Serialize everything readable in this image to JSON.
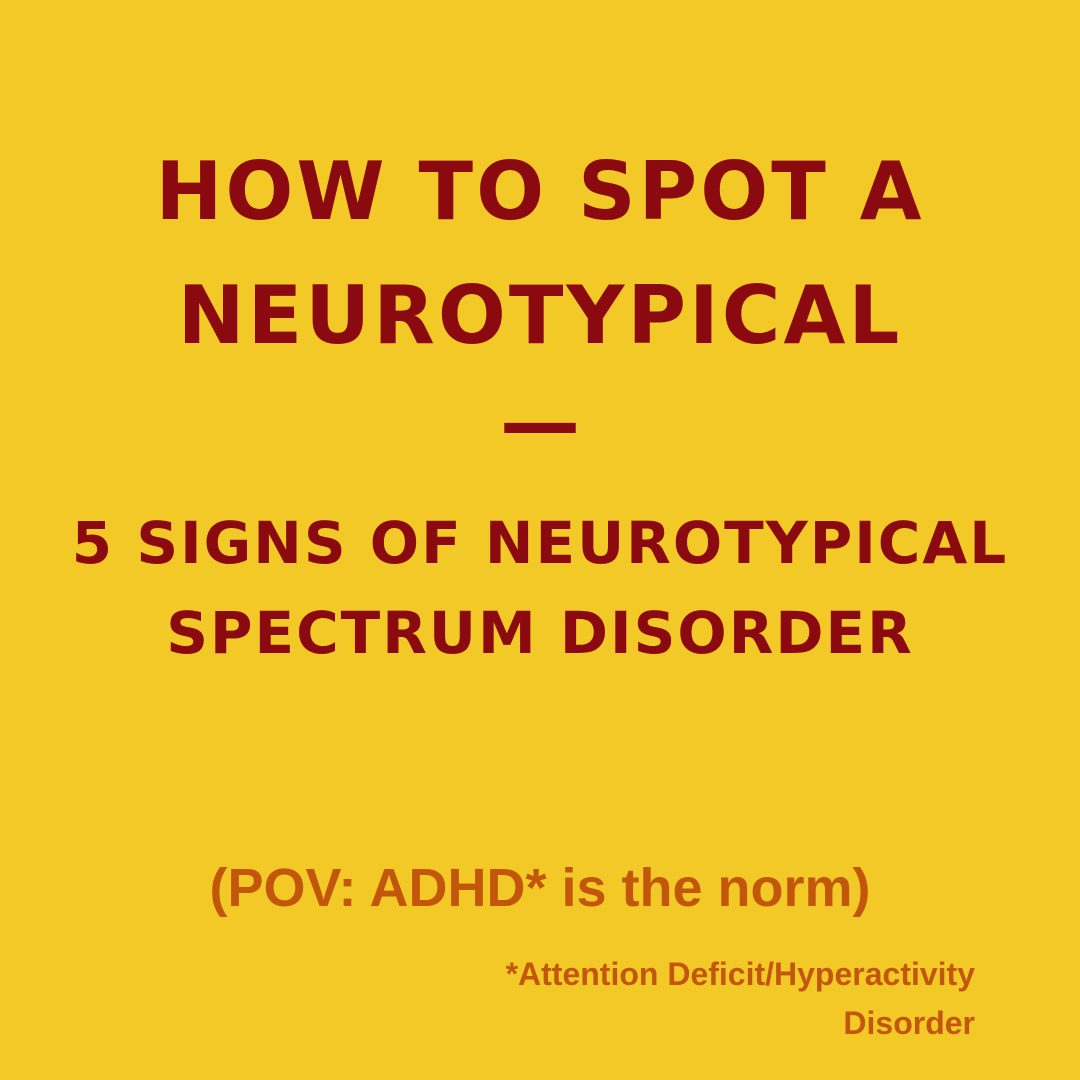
{
  "colors": {
    "background": "#F3C928",
    "heading": "#8A0A0F",
    "accent": "#C2570C"
  },
  "title": {
    "line1": "HOW TO SPOT A",
    "line2": "NEUROTYPICAL"
  },
  "separator": "—",
  "subtitle": {
    "line1": "5 SIGNS OF NEUROTYPICAL",
    "line2": "SPECTRUM DISORDER"
  },
  "pov": "(POV: ADHD* is the norm)",
  "footnote": {
    "line1": "*Attention Deficit/Hyperactivity",
    "line2": "Disorder"
  }
}
